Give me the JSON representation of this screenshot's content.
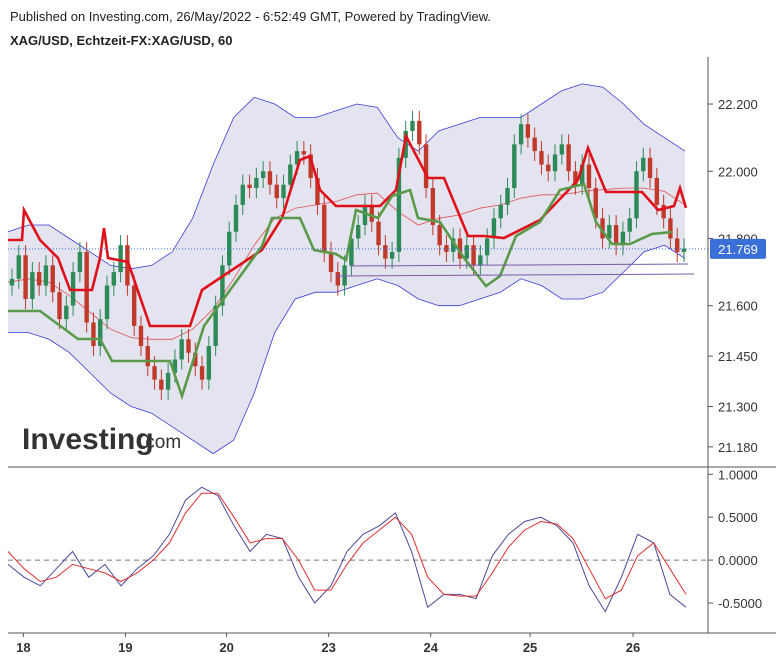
{
  "header": {
    "published": "Published on Investing.com, 26/May/2022 - 6:52:49 GMT, Powered by TradingView.",
    "symbol": "XAG/USD, Echtzeit-FX:XAG/USD, 60"
  },
  "logo": {
    "word": "Investing",
    "suffix": ".com"
  },
  "price_badge": {
    "value": "21.769",
    "color": "#3b6fd8"
  },
  "colors": {
    "up": "#2e8b57",
    "down": "#c0392b",
    "band_fill": "#e3e4f0",
    "band_line": "#3b3bd6",
    "band_mid": "#e05050",
    "red_trail": "#e0101a",
    "green_trail": "#5a9a4a",
    "osc_k": "#4a4a9c",
    "osc_d": "#e03030",
    "hline": "#7a5aa8"
  },
  "chart_data": [
    {
      "type": "candlestick",
      "title": "XAG/USD, Echtzeit-FX:XAG/USD, 60",
      "ylim": [
        21.12,
        22.34
      ],
      "y_ticks": [
        "22.200",
        "22.000",
        "21.800",
        "21.600",
        "21.450",
        "21.300",
        "21.180"
      ],
      "x_ticks": [
        {
          "label": "18",
          "x": 0.17
        },
        {
          "label": "19",
          "x": 1.3
        },
        {
          "label": "20",
          "x": 2.42
        },
        {
          "label": "23",
          "x": 3.55
        },
        {
          "label": "24",
          "x": 4.68
        },
        {
          "label": "25",
          "x": 5.78
        },
        {
          "label": "26",
          "x": 6.92
        }
      ],
      "xlim": [
        0,
        7.75
      ],
      "last_price": 21.769,
      "candles_close": [
        21.68,
        21.75,
        21.62,
        21.7,
        21.66,
        21.72,
        21.64,
        21.56,
        21.6,
        21.7,
        21.76,
        21.55,
        21.48,
        21.56,
        21.66,
        21.7,
        21.78,
        21.66,
        21.54,
        21.48,
        21.42,
        21.38,
        21.35,
        21.4,
        21.44,
        21.5,
        21.46,
        21.42,
        21.38,
        21.48,
        21.6,
        21.72,
        21.82,
        21.9,
        21.96,
        21.95,
        21.98,
        22.0,
        21.96,
        21.92,
        21.96,
        22.02,
        22.06,
        22.05,
        21.98,
        21.9,
        21.76,
        21.7,
        21.66,
        21.72,
        21.8,
        21.84,
        21.9,
        21.85,
        21.78,
        21.74,
        21.76,
        22.04,
        22.12,
        22.15,
        22.08,
        21.95,
        21.84,
        21.78,
        21.76,
        21.8,
        21.74,
        21.78,
        21.72,
        21.75,
        21.8,
        21.86,
        21.9,
        21.95,
        22.08,
        22.14,
        22.1,
        22.06,
        22.02,
        22.0,
        22.05,
        22.08,
        22.0,
        21.96,
        22.02,
        21.95,
        21.86,
        21.8,
        21.84,
        21.78,
        21.82,
        21.86,
        22.0,
        22.04,
        21.98,
        21.9,
        21.86,
        21.8,
        21.76,
        21.77
      ],
      "series": [
        {
          "name": "",
          "kind": "bollinger_upper",
          "values": [
            21.82,
            21.84,
            21.84,
            21.8,
            21.76,
            21.72,
            21.71,
            21.72,
            21.76,
            21.86,
            22.02,
            22.16,
            22.22,
            22.2,
            22.16,
            22.16,
            22.18,
            22.2,
            22.19,
            22.1,
            22.06,
            22.12,
            22.14,
            22.16,
            22.16,
            22.16,
            22.2,
            22.24,
            22.26,
            22.25,
            22.2,
            22.14,
            22.1,
            22.06
          ]
        },
        {
          "name": "",
          "kind": "bollinger_lower",
          "values": [
            21.52,
            21.52,
            21.5,
            21.46,
            21.4,
            21.34,
            21.3,
            21.28,
            21.24,
            21.2,
            21.16,
            21.2,
            21.34,
            21.52,
            21.62,
            21.64,
            21.64,
            21.66,
            21.68,
            21.66,
            21.62,
            21.6,
            21.6,
            21.62,
            21.64,
            21.68,
            21.66,
            21.62,
            21.62,
            21.64,
            21.7,
            21.76,
            21.78,
            21.74
          ]
        },
        {
          "name": "",
          "kind": "oscillator_k",
          "values": [
            -0.05,
            -0.2,
            -0.3,
            -0.1,
            0.1,
            -0.2,
            -0.05,
            -0.3,
            -0.1,
            0.05,
            0.3,
            0.7,
            0.85,
            0.75,
            0.4,
            0.1,
            0.3,
            0.25,
            -0.2,
            -0.5,
            -0.3,
            0.1,
            0.3,
            0.4,
            0.55,
            0.1,
            -0.55,
            -0.4,
            -0.4,
            -0.45,
            0.05,
            0.3,
            0.45,
            0.5,
            0.4,
            0.2,
            -0.3,
            -0.6,
            -0.2,
            0.3,
            0.2,
            -0.4,
            -0.55
          ]
        },
        {
          "name": "",
          "kind": "oscillator_d",
          "values": [
            0.1,
            -0.1,
            -0.25,
            -0.2,
            -0.05,
            -0.1,
            -0.15,
            -0.25,
            -0.15,
            0.0,
            0.2,
            0.55,
            0.78,
            0.78,
            0.5,
            0.2,
            0.25,
            0.25,
            0.0,
            -0.35,
            -0.35,
            -0.05,
            0.2,
            0.35,
            0.5,
            0.3,
            -0.2,
            -0.4,
            -0.42,
            -0.42,
            -0.15,
            0.15,
            0.35,
            0.45,
            0.42,
            0.25,
            -0.1,
            -0.45,
            -0.35,
            0.05,
            0.2,
            -0.1,
            -0.4
          ]
        }
      ]
    },
    {
      "type": "line",
      "title": "",
      "ylim": [
        -0.85,
        1.05
      ],
      "y_ticks": [
        "1.0000",
        "0.5000",
        "0.0000",
        "-0.5000"
      ]
    }
  ]
}
